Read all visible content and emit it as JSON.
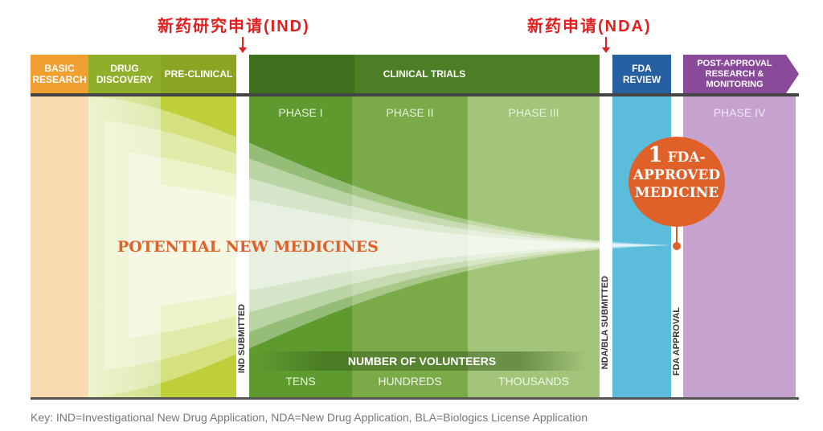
{
  "milestones": {
    "ind_title": "新药研究申请(IND)",
    "nda_title": "新药申请(NDA)"
  },
  "stages": {
    "basic": "BASIC RESEARCH",
    "discovery": "DRUG DISCOVERY",
    "preclinical": "PRE-CLINICAL",
    "clinical": "CLINICAL TRIALS",
    "fda_review": "FDA REVIEW",
    "post": "POST-APPROVAL RESEARCH & MONITORING"
  },
  "phases": [
    "PHASE I",
    "PHASE II",
    "PHASE III",
    "PHASE IV"
  ],
  "markers": {
    "ind": "IND SUBMITTED",
    "nda": "NDA/BLA SUBMITTED",
    "approval": "FDA APPROVAL"
  },
  "funnel_label": "POTENTIAL NEW MEDICINES",
  "result": {
    "count": "1",
    "line1": "FDA-",
    "line2": "APPROVED",
    "line3": "MEDICINE"
  },
  "volunteers": {
    "title": "NUMBER OF VOLUNTEERS",
    "values": [
      "TENS",
      "HUNDREDS",
      "THOUSANDS"
    ]
  },
  "key": "Key: IND=Investigational New Drug Application, NDA=New Drug Application, BLA=Biologics License Application",
  "colors": {
    "basic": "#f0a030",
    "discovery": "#8fae2a",
    "preclinical": "#8aa524",
    "clinical": "#3f6e1f",
    "fda": "#2660a0",
    "post": "#8a4a9a",
    "title_red": "#e02020",
    "medicine": "#e0602a"
  }
}
